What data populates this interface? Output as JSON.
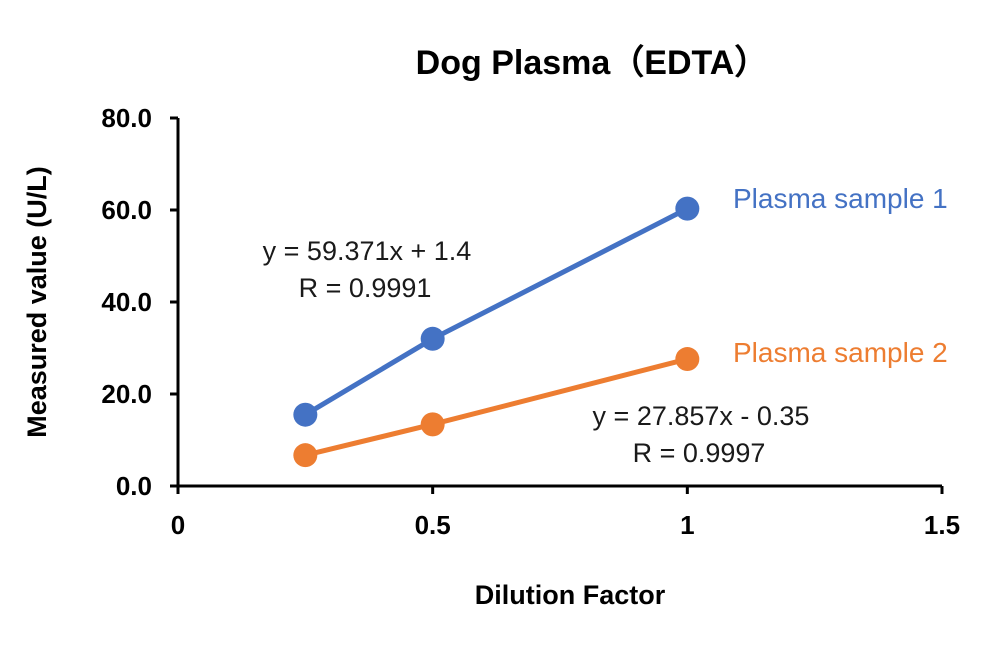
{
  "chart_data": {
    "type": "scatter",
    "title": "Dog Plasma（EDTA）",
    "xlabel": "Dilution Factor",
    "ylabel": "Measured value (U/L)",
    "xlim": [
      0,
      1.5
    ],
    "ylim": [
      0,
      80
    ],
    "x_ticks": [
      0,
      0.5,
      1,
      1.5
    ],
    "x_tick_labels": [
      "0",
      "0.5",
      "1",
      "1.5"
    ],
    "y_ticks": [
      0,
      20,
      40,
      60,
      80
    ],
    "y_tick_labels": [
      "0.0",
      "20.0",
      "40.0",
      "60.0",
      "80.0"
    ],
    "grid": false,
    "series": [
      {
        "name": "Plasma sample 1",
        "color": "#4472C4",
        "x": [
          0.25,
          0.5,
          1
        ],
        "values": [
          15.5,
          32.0,
          60.3
        ],
        "equation": "y = 59.371x + 1.4",
        "r_text": "R = 0.9991"
      },
      {
        "name": "Plasma sample 2",
        "color": "#ED7D31",
        "x": [
          0.25,
          0.5,
          1
        ],
        "values": [
          6.7,
          13.4,
          27.6
        ],
        "equation": "y = 27.857x - 0.35",
        "r_text": "R = 0.9997"
      }
    ]
  }
}
